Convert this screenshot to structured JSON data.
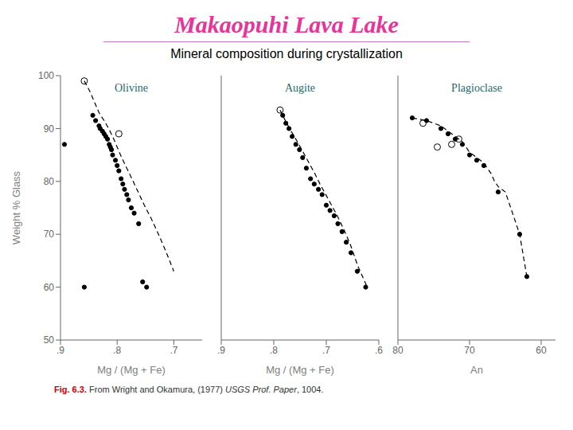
{
  "title": "Makaopuhi Lava Lake",
  "subtitle": "Mineral composition during crystallization",
  "annotations": [
    "Fig. 6.3.",
    " From Wright and Okamura, (1977) ",
    "USGS Prof. Paper",
    ", 1004."
  ],
  "chart_data": [
    {
      "type": "scatter",
      "title": "Olivine",
      "xlabel": "Mg / (Mg + Fe)",
      "ylabel": "Weight % Glass",
      "xlim": [
        0.9,
        0.65
      ],
      "ylim": [
        50,
        100
      ],
      "xticks": [
        {
          "value": 0.9,
          "label": ".9"
        },
        {
          "value": 0.8,
          "label": ".8"
        },
        {
          "value": 0.7,
          "label": ".7"
        }
      ],
      "yticks": [
        50,
        60,
        70,
        80,
        90,
        100
      ],
      "series": [
        {
          "type": "line",
          "line_style": "dashed",
          "marker": "none",
          "color": "#000000",
          "x": [
            0.858,
            0.848,
            0.84,
            0.832,
            0.823,
            0.815,
            0.808,
            0.8,
            0.792,
            0.783,
            0.774,
            0.763,
            0.752,
            0.74,
            0.727,
            0.713,
            0.7
          ],
          "values": [
            99,
            97,
            95,
            93,
            91.5,
            90,
            88.5,
            86.5,
            84.5,
            82.5,
            80.5,
            78,
            75.5,
            73,
            70,
            66.5,
            63
          ]
        },
        {
          "type": "scatter",
          "marker": "open_circle",
          "color": "#000000",
          "x": [
            0.858,
            0.797
          ],
          "values": [
            99,
            89
          ]
        },
        {
          "type": "scatter",
          "marker": "circle",
          "color": "#000000",
          "x": [
            0.843,
            0.838,
            0.832,
            0.83,
            0.826,
            0.823,
            0.82,
            0.817,
            0.814,
            0.812,
            0.81,
            0.808,
            0.803,
            0.8,
            0.797,
            0.793,
            0.79,
            0.787,
            0.783,
            0.78,
            0.775,
            0.77,
            0.762,
            0.755,
            0.748,
            0.893,
            0.858
          ],
          "values": [
            92.5,
            91.5,
            90.5,
            90,
            89.5,
            89,
            88.5,
            88,
            87,
            86.5,
            86,
            85,
            84,
            83,
            82,
            80.5,
            79.5,
            78.5,
            77.5,
            76.5,
            75,
            74,
            72,
            61,
            60,
            87,
            60
          ]
        }
      ]
    },
    {
      "type": "scatter",
      "title": "Augite",
      "xlabel": "Mg / (Mg + Fe)",
      "tick_labels": "x",
      "xlim": [
        0.9,
        0.6
      ],
      "ylim": [
        50,
        100
      ],
      "xticks": [
        {
          "value": 0.9,
          "label": ".9"
        },
        {
          "value": 0.8,
          "label": ".8"
        },
        {
          "value": 0.7,
          "label": ".7"
        },
        {
          "value": 0.6,
          "label": ".6"
        }
      ],
      "yticks": [
        50,
        60,
        70,
        80,
        90,
        100
      ],
      "series": [
        {
          "type": "line",
          "line_style": "dashed",
          "marker": "none",
          "color": "#000000",
          "x": [
            0.788,
            0.778,
            0.767,
            0.755,
            0.744,
            0.733,
            0.722,
            0.712,
            0.701,
            0.69,
            0.679,
            0.667,
            0.654,
            0.64,
            0.622
          ],
          "values": [
            93.5,
            91.5,
            89.5,
            87.5,
            85.5,
            83.5,
            81.5,
            79.5,
            77.5,
            75.5,
            73.5,
            71,
            68,
            64,
            60
          ]
        },
        {
          "type": "scatter",
          "marker": "open_circle",
          "color": "#000000",
          "x": [
            0.788
          ],
          "values": [
            93.5
          ]
        },
        {
          "type": "scatter",
          "marker": "circle",
          "color": "#000000",
          "x": [
            0.783,
            0.777,
            0.771,
            0.765,
            0.758,
            0.751,
            0.745,
            0.738,
            0.73,
            0.723,
            0.715,
            0.708,
            0.7,
            0.693,
            0.685,
            0.678,
            0.67,
            0.662,
            0.653,
            0.641,
            0.625
          ],
          "values": [
            92.5,
            91,
            90,
            88.5,
            87,
            86,
            84.5,
            82.5,
            80.5,
            79.5,
            78.5,
            77.5,
            75.5,
            74.5,
            73.5,
            72,
            70.5,
            68.5,
            66.5,
            63,
            60
          ]
        }
      ]
    },
    {
      "type": "scatter",
      "title": "Plagioclase",
      "xlabel": "An",
      "tick_labels": "x",
      "xlim": [
        80,
        58
      ],
      "ylim": [
        50,
        100
      ],
      "xticks": [
        80,
        70,
        60
      ],
      "yticks": [
        50,
        60,
        70,
        80,
        90,
        100
      ],
      "series": [
        {
          "type": "line",
          "line_style": "dashed",
          "marker": "none",
          "color": "#000000",
          "x": [
            78,
            76,
            74,
            73,
            72,
            71,
            70.5,
            70,
            69.5,
            69,
            68.5,
            68,
            67.5,
            67,
            66.5,
            66,
            65,
            63,
            62
          ],
          "values": [
            92,
            91.5,
            90.5,
            89.5,
            88.5,
            87.5,
            86.5,
            85.5,
            85,
            84.5,
            84,
            83.5,
            82.5,
            81.5,
            80,
            79,
            78,
            70,
            62
          ]
        },
        {
          "type": "scatter",
          "marker": "open_circle",
          "color": "#000000",
          "x": [
            76.5,
            71.5,
            72.5,
            74.5
          ],
          "values": [
            91,
            88,
            87,
            86.5
          ]
        },
        {
          "type": "scatter",
          "marker": "circle",
          "color": "#000000",
          "x": [
            78,
            76,
            74,
            73,
            72,
            71,
            70,
            69,
            68,
            66,
            63,
            62
          ],
          "values": [
            92,
            91.5,
            90,
            89,
            88,
            87,
            85,
            84,
            83,
            78,
            70,
            62
          ]
        }
      ]
    }
  ]
}
